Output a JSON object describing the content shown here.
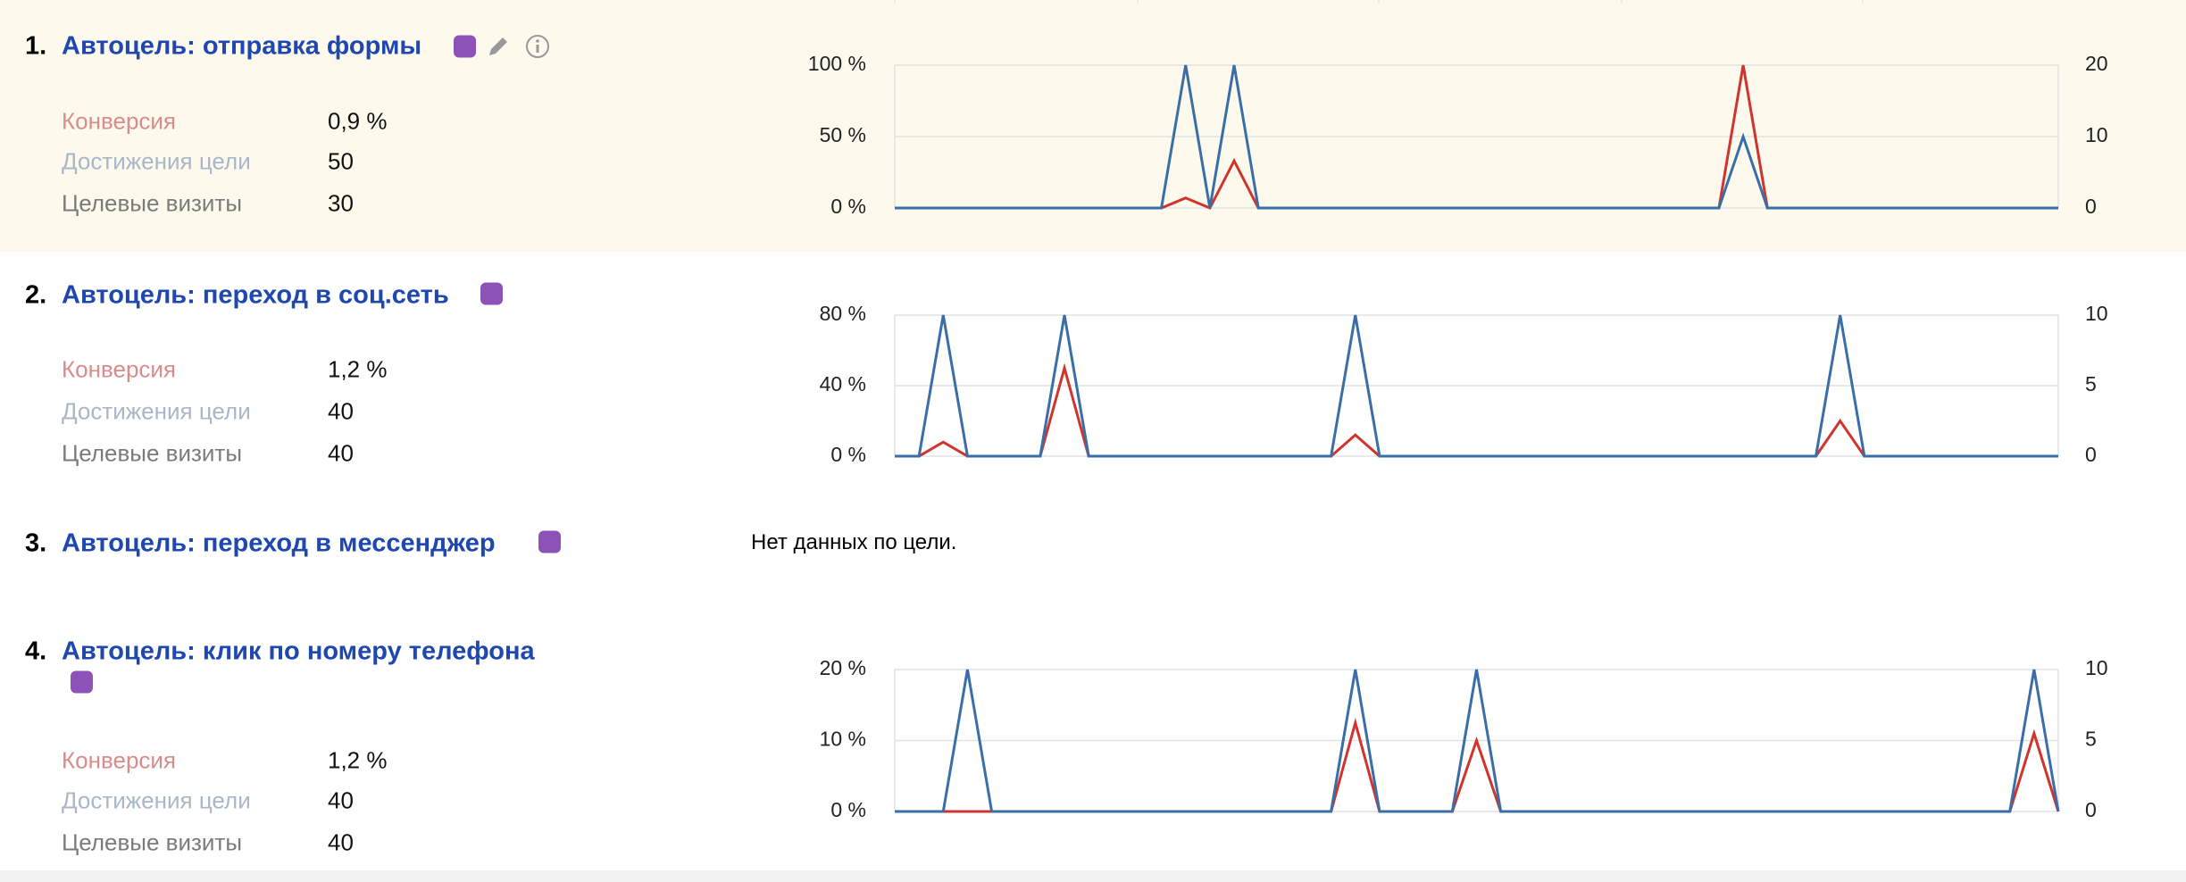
{
  "goals": [
    {
      "number": "1.",
      "title": "Автоцель: отправка формы",
      "metrics": [
        {
          "label": "Конверсия",
          "value": "0,9 %"
        },
        {
          "label": "Достижения цели",
          "value": "50"
        },
        {
          "label": "Целевые визиты",
          "value": "30"
        }
      ]
    },
    {
      "number": "2.",
      "title": "Автоцель: переход в соц.сеть",
      "metrics": [
        {
          "label": "Конверсия",
          "value": "1,2 %"
        },
        {
          "label": "Достижения цели",
          "value": "40"
        },
        {
          "label": "Целевые визиты",
          "value": "40"
        }
      ]
    },
    {
      "number": "3.",
      "title": "Автоцель: переход в мессенджер",
      "no_data": "Нет данных по цели."
    },
    {
      "number": "4.",
      "title": "Автоцель: клик по номеру телефона",
      "metrics": [
        {
          "label": "Конверсия",
          "value": "1,2 %"
        },
        {
          "label": "Достижения цели",
          "value": "40"
        },
        {
          "label": "Целевые визиты",
          "value": "40"
        }
      ]
    }
  ],
  "chart_data": [
    {
      "type": "line",
      "grid": true,
      "ylim": [
        0,
        100
      ],
      "yticks": [
        {
          "value": 0,
          "label": "0 %"
        },
        {
          "value": 50,
          "label": "50 %"
        },
        {
          "value": 100,
          "label": "100 %"
        }
      ],
      "y2lim": [
        0,
        20
      ],
      "y2ticks": [
        0,
        10,
        20
      ],
      "series": [
        {
          "color": "#d0342c",
          "values": [
            0,
            0,
            0,
            0,
            0,
            0,
            0,
            0,
            0,
            0,
            0,
            0,
            7,
            0,
            33,
            0,
            0,
            0,
            0,
            0,
            0,
            0,
            0,
            0,
            0,
            0,
            0,
            0,
            0,
            0,
            0,
            0,
            0,
            0,
            0,
            100,
            0,
            0,
            0,
            0,
            0,
            0,
            0,
            0,
            0,
            0,
            0,
            0,
            0
          ]
        },
        {
          "color": "#3a6ea8",
          "axis": "y2",
          "values": [
            0,
            0,
            0,
            0,
            0,
            0,
            0,
            0,
            0,
            0,
            0,
            0,
            20,
            0,
            20,
            0,
            0,
            0,
            0,
            0,
            0,
            0,
            0,
            0,
            0,
            0,
            0,
            0,
            0,
            0,
            0,
            0,
            0,
            0,
            0,
            10,
            0,
            0,
            0,
            0,
            0,
            0,
            0,
            0,
            0,
            0,
            0,
            0,
            0
          ]
        }
      ]
    },
    {
      "type": "line",
      "grid": true,
      "ylim": [
        0,
        80
      ],
      "yticks": [
        {
          "value": 0,
          "label": "0 %"
        },
        {
          "value": 40,
          "label": "40 %"
        },
        {
          "value": 80,
          "label": "80 %"
        }
      ],
      "y2lim": [
        0,
        10
      ],
      "y2ticks": [
        0,
        5,
        10
      ],
      "series": [
        {
          "color": "#d0342c",
          "values": [
            0,
            0,
            8,
            0,
            0,
            0,
            0,
            50,
            0,
            0,
            0,
            0,
            0,
            0,
            0,
            0,
            0,
            0,
            0,
            12,
            0,
            0,
            0,
            0,
            0,
            0,
            0,
            0,
            0,
            0,
            0,
            0,
            0,
            0,
            0,
            0,
            0,
            0,
            0,
            20,
            0,
            0,
            0,
            0,
            0,
            0,
            0,
            0,
            0
          ]
        },
        {
          "color": "#3a6ea8",
          "axis": "y2",
          "values": [
            0,
            0,
            10,
            0,
            0,
            0,
            0,
            10,
            0,
            0,
            0,
            0,
            0,
            0,
            0,
            0,
            0,
            0,
            0,
            10,
            0,
            0,
            0,
            0,
            0,
            0,
            0,
            0,
            0,
            0,
            0,
            0,
            0,
            0,
            0,
            0,
            0,
            0,
            0,
            10,
            0,
            0,
            0,
            0,
            0,
            0,
            0,
            0,
            0
          ]
        }
      ]
    },
    {
      "type": "line",
      "grid": true,
      "ylim": [
        0,
        20
      ],
      "yticks": [
        {
          "value": 0,
          "label": "0 %"
        },
        {
          "value": 10,
          "label": "10 %"
        },
        {
          "value": 20,
          "label": "20 %"
        }
      ],
      "y2lim": [
        0,
        10
      ],
      "y2ticks": [
        0,
        5,
        10
      ],
      "series": [
        {
          "color": "#d0342c",
          "values": [
            0,
            0,
            0,
            0,
            0,
            0,
            0,
            0,
            0,
            0,
            0,
            0,
            0,
            0,
            0,
            0,
            0,
            0,
            0,
            12.5,
            0,
            0,
            0,
            0,
            10,
            0,
            0,
            0,
            0,
            0,
            0,
            0,
            0,
            0,
            0,
            0,
            0,
            0,
            0,
            0,
            0,
            0,
            0,
            0,
            0,
            0,
            0,
            11,
            0
          ]
        },
        {
          "color": "#3a6ea8",
          "axis": "y2",
          "values": [
            0,
            0,
            0,
            10,
            0,
            0,
            0,
            0,
            0,
            0,
            0,
            0,
            0,
            0,
            0,
            0,
            0,
            0,
            0,
            10,
            0,
            0,
            0,
            0,
            10,
            0,
            0,
            0,
            0,
            0,
            0,
            0,
            0,
            0,
            0,
            0,
            0,
            0,
            0,
            0,
            0,
            0,
            0,
            0,
            0,
            0,
            0,
            10,
            0
          ]
        }
      ]
    }
  ]
}
